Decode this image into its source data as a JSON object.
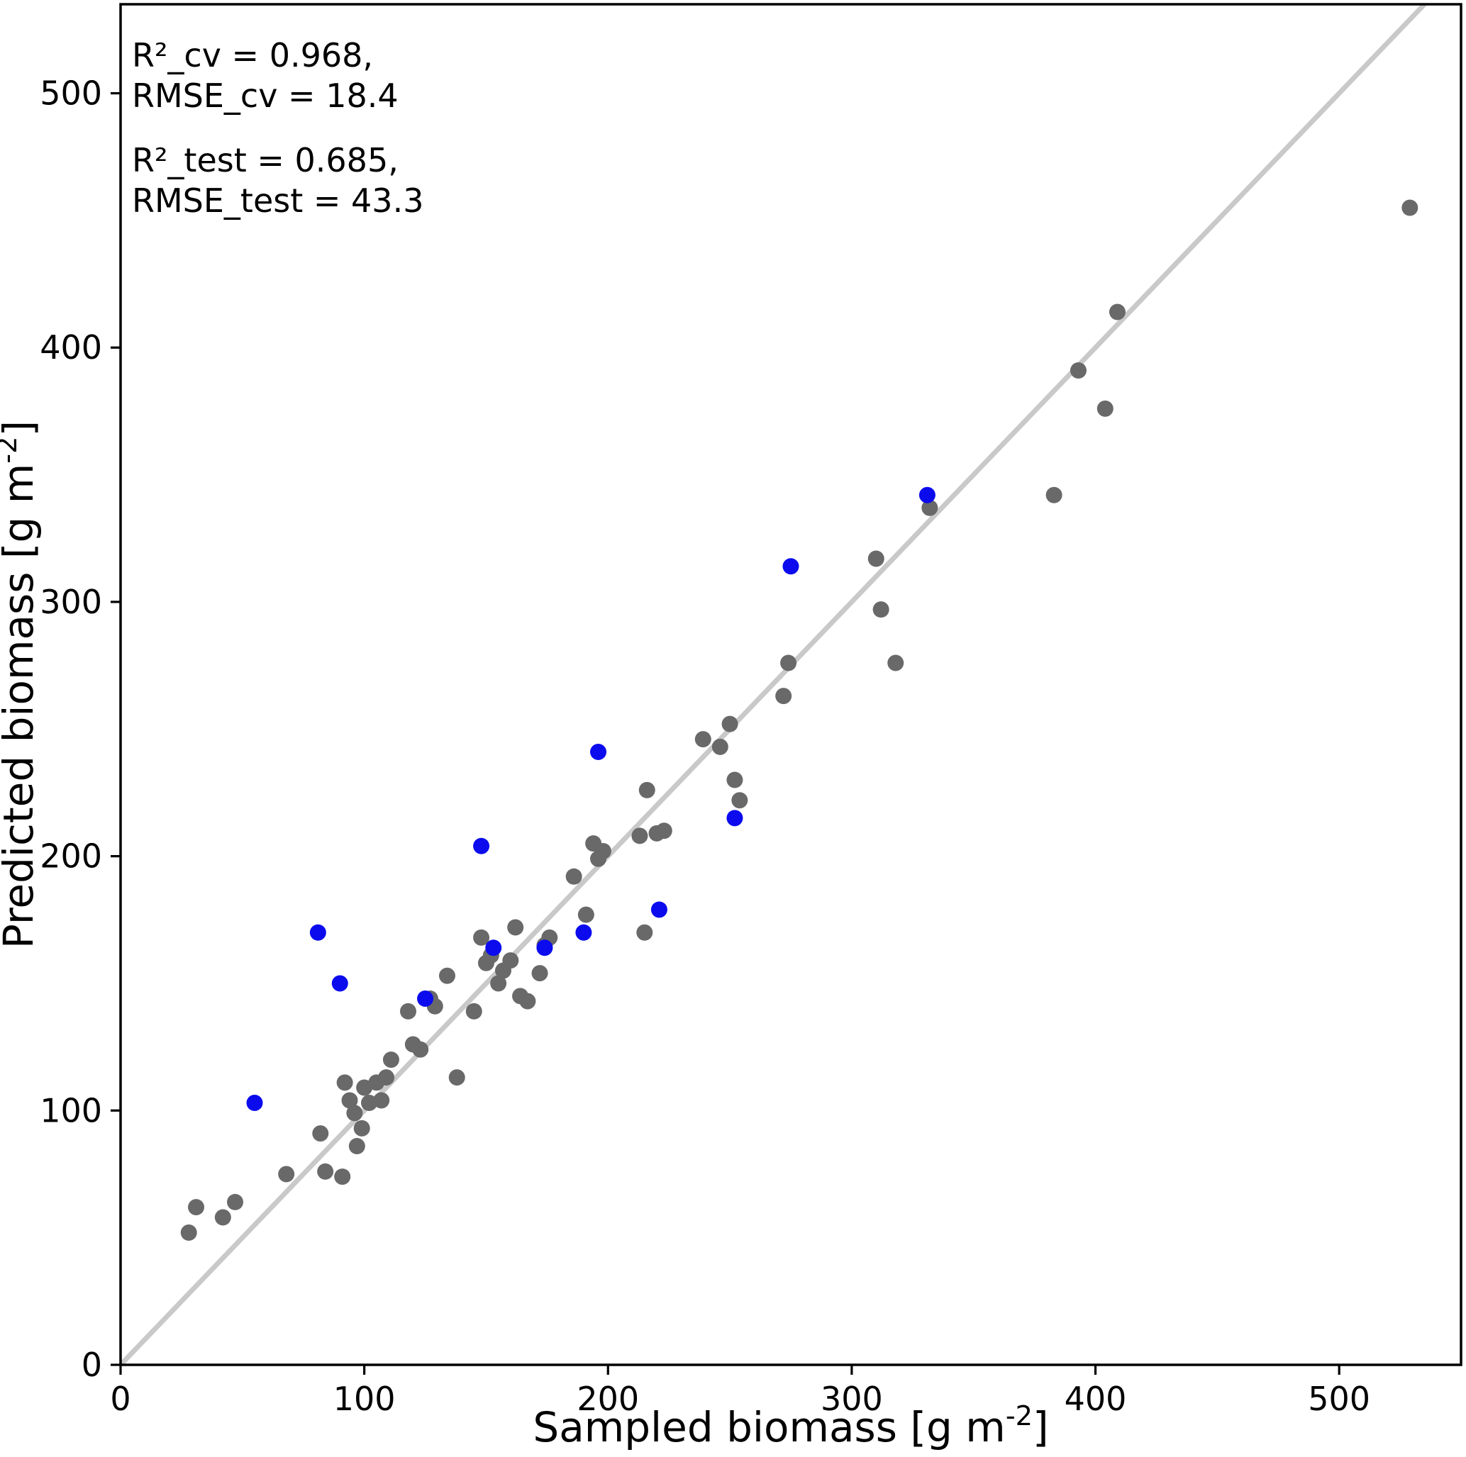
{
  "chart_data": {
    "type": "scatter",
    "title": "",
    "xlabel": "Sampled biomass [g m⁻²]",
    "ylabel": "Predicted biomass [g m⁻²]",
    "xlim": [
      0,
      550
    ],
    "ylim": [
      0,
      535
    ],
    "xticks": [
      0,
      100,
      200,
      300,
      400,
      500
    ],
    "yticks": [
      0,
      100,
      200,
      300,
      400,
      500
    ],
    "grid": false,
    "legend_position": "none",
    "annotations": [
      {
        "lines": [
          "R²_cv = 0.968,",
          "RMSE_cv = 18.4"
        ]
      },
      {
        "lines": [
          "R²_test = 0.685,",
          "RMSE_test = 43.3"
        ]
      }
    ],
    "identity_line": {
      "from": [
        0,
        0
      ],
      "to": [
        550,
        550
      ],
      "color": "#c9c9c9"
    },
    "colors": {
      "background": "#ffffff",
      "axes": "#000000",
      "cv_points": "#696969",
      "test_points": "#0b0bee"
    },
    "series": [
      {
        "name": "cv",
        "color": "#696969",
        "points": [
          [
            28,
            52
          ],
          [
            31,
            62
          ],
          [
            42,
            58
          ],
          [
            47,
            64
          ],
          [
            68,
            75
          ],
          [
            82,
            91
          ],
          [
            84,
            76
          ],
          [
            91,
            74
          ],
          [
            92,
            111
          ],
          [
            94,
            104
          ],
          [
            96,
            99
          ],
          [
            97,
            86
          ],
          [
            99,
            93
          ],
          [
            100,
            109
          ],
          [
            102,
            103
          ],
          [
            105,
            111
          ],
          [
            107,
            104
          ],
          [
            109,
            113
          ],
          [
            111,
            120
          ],
          [
            118,
            139
          ],
          [
            120,
            126
          ],
          [
            123,
            124
          ],
          [
            127,
            144
          ],
          [
            129,
            141
          ],
          [
            134,
            153
          ],
          [
            138,
            113
          ],
          [
            145,
            139
          ],
          [
            148,
            168
          ],
          [
            150,
            158
          ],
          [
            152,
            161
          ],
          [
            155,
            150
          ],
          [
            157,
            155
          ],
          [
            160,
            159
          ],
          [
            162,
            172
          ],
          [
            164,
            145
          ],
          [
            167,
            143
          ],
          [
            172,
            154
          ],
          [
            174,
            165
          ],
          [
            176,
            168
          ],
          [
            186,
            192
          ],
          [
            191,
            177
          ],
          [
            194,
            205
          ],
          [
            196,
            199
          ],
          [
            198,
            202
          ],
          [
            213,
            208
          ],
          [
            215,
            170
          ],
          [
            216,
            226
          ],
          [
            220,
            209
          ],
          [
            223,
            210
          ],
          [
            239,
            246
          ],
          [
            246,
            243
          ],
          [
            250,
            252
          ],
          [
            252,
            230
          ],
          [
            254,
            222
          ],
          [
            272,
            263
          ],
          [
            274,
            276
          ],
          [
            310,
            317
          ],
          [
            312,
            297
          ],
          [
            318,
            276
          ],
          [
            332,
            337
          ],
          [
            383,
            342
          ],
          [
            393,
            391
          ],
          [
            404,
            376
          ],
          [
            409,
            414
          ],
          [
            529,
            455
          ]
        ]
      },
      {
        "name": "test",
        "color": "#0b0bee",
        "points": [
          [
            55,
            103
          ],
          [
            81,
            170
          ],
          [
            90,
            150
          ],
          [
            125,
            144
          ],
          [
            148,
            204
          ],
          [
            153,
            164
          ],
          [
            174,
            164
          ],
          [
            190,
            170
          ],
          [
            196,
            241
          ],
          [
            221,
            179
          ],
          [
            252,
            215
          ],
          [
            275,
            314
          ],
          [
            331,
            342
          ]
        ]
      }
    ]
  }
}
